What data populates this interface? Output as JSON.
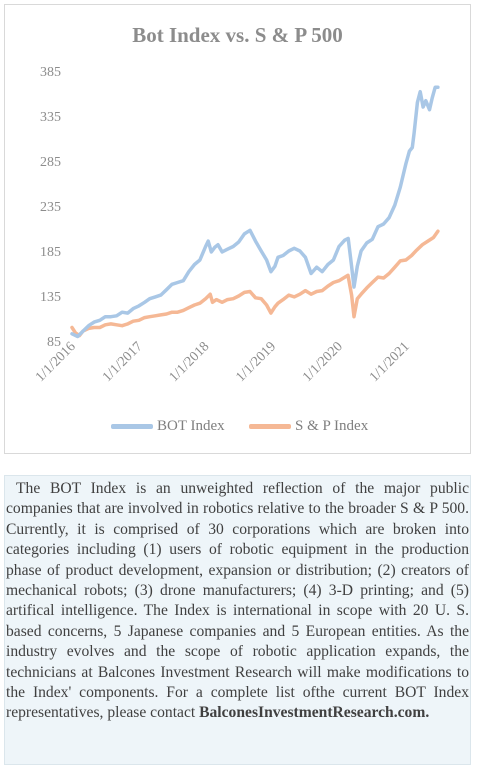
{
  "chart_data": {
    "type": "line",
    "title": "Bot Index vs. S & P 500",
    "xlabel": "",
    "ylabel": "",
    "ylim": [
      85,
      385
    ],
    "yticks": [
      85,
      135,
      185,
      235,
      285,
      335,
      385
    ],
    "xlim": [
      "2016-01-01",
      "2021-07-01"
    ],
    "xticks": [
      "1/1/2016",
      "1/1/2017",
      "1/1/2018",
      "1/1/2019",
      "1/1/2020",
      "1/1/2021"
    ],
    "legend_position": "bottom",
    "grid": false,
    "series": [
      {
        "name": "BOT Index",
        "color": "#a9c7e6",
        "x": [
          "2016-01-01",
          "2016-02-01",
          "2016-03-01",
          "2016-04-01",
          "2016-05-01",
          "2016-06-01",
          "2016-07-01",
          "2016-08-01",
          "2016-09-01",
          "2016-10-01",
          "2016-11-01",
          "2016-12-01",
          "2017-01-01",
          "2017-02-01",
          "2017-03-01",
          "2017-04-01",
          "2017-05-01",
          "2017-06-01",
          "2017-07-01",
          "2017-08-01",
          "2017-09-01",
          "2017-10-01",
          "2017-11-01",
          "2017-12-01",
          "2018-01-01",
          "2018-01-15",
          "2018-02-01",
          "2018-02-20",
          "2018-03-10",
          "2018-04-01",
          "2018-05-01",
          "2018-06-01",
          "2018-07-01",
          "2018-08-01",
          "2018-09-01",
          "2018-10-01",
          "2018-11-01",
          "2018-12-01",
          "2018-12-24",
          "2019-01-15",
          "2019-02-01",
          "2019-03-01",
          "2019-04-01",
          "2019-05-01",
          "2019-06-01",
          "2019-07-01",
          "2019-08-01",
          "2019-09-01",
          "2019-10-01",
          "2019-11-01",
          "2019-12-01",
          "2020-01-01",
          "2020-02-01",
          "2020-02-20",
          "2020-03-10",
          "2020-03-23",
          "2020-04-10",
          "2020-05-01",
          "2020-06-01",
          "2020-07-01",
          "2020-08-01",
          "2020-09-01",
          "2020-10-01",
          "2020-11-01",
          "2020-12-01",
          "2021-01-01",
          "2021-01-20",
          "2021-02-05",
          "2021-02-15",
          "2021-03-05",
          "2021-03-20",
          "2021-04-05",
          "2021-04-20",
          "2021-05-10",
          "2021-05-25",
          "2021-06-10",
          "2021-06-25"
        ],
        "values": [
          93,
          90,
          96,
          102,
          106,
          108,
          112,
          112,
          113,
          117,
          116,
          121,
          124,
          128,
          132,
          134,
          136,
          142,
          148,
          150,
          152,
          162,
          170,
          175,
          190,
          196,
          184,
          189,
          192,
          184,
          187,
          190,
          195,
          204,
          208,
          196,
          185,
          175,
          162,
          168,
          178,
          180,
          185,
          188,
          185,
          178,
          160,
          167,
          162,
          170,
          175,
          190,
          197,
          199,
          168,
          145,
          168,
          185,
          194,
          198,
          212,
          215,
          222,
          236,
          256,
          282,
          296,
          300,
          316,
          350,
          362,
          345,
          352,
          342,
          355,
          367,
          367
        ]
      },
      {
        "name": "S & P Index",
        "color": "#f5b895",
        "x": [
          "2016-01-01",
          "2016-01-20",
          "2016-02-11",
          "2016-03-01",
          "2016-04-01",
          "2016-05-01",
          "2016-06-01",
          "2016-07-01",
          "2016-08-01",
          "2016-09-01",
          "2016-10-01",
          "2016-11-01",
          "2016-12-01",
          "2017-01-01",
          "2017-02-01",
          "2017-03-01",
          "2017-04-01",
          "2017-05-01",
          "2017-06-01",
          "2017-07-01",
          "2017-08-01",
          "2017-09-01",
          "2017-10-01",
          "2017-11-01",
          "2017-12-01",
          "2018-01-01",
          "2018-01-26",
          "2018-02-08",
          "2018-03-01",
          "2018-04-01",
          "2018-05-01",
          "2018-06-01",
          "2018-07-01",
          "2018-08-01",
          "2018-09-01",
          "2018-10-01",
          "2018-11-01",
          "2018-12-01",
          "2018-12-24",
          "2019-01-15",
          "2019-02-01",
          "2019-03-01",
          "2019-04-01",
          "2019-05-01",
          "2019-06-01",
          "2019-07-01",
          "2019-08-01",
          "2019-09-01",
          "2019-10-01",
          "2019-11-01",
          "2019-12-01",
          "2020-01-01",
          "2020-02-19",
          "2020-03-10",
          "2020-03-23",
          "2020-04-10",
          "2020-05-01",
          "2020-06-01",
          "2020-07-01",
          "2020-08-01",
          "2020-09-01",
          "2020-10-01",
          "2020-11-01",
          "2020-12-01",
          "2021-01-01",
          "2021-02-01",
          "2021-03-01",
          "2021-04-01",
          "2021-05-01",
          "2021-06-01",
          "2021-06-25"
        ],
        "values": [
          100,
          94,
          91,
          96,
          99,
          100,
          100,
          103,
          104,
          103,
          102,
          104,
          107,
          108,
          111,
          112,
          113,
          114,
          115,
          117,
          117,
          119,
          122,
          125,
          127,
          132,
          137,
          128,
          131,
          128,
          131,
          132,
          135,
          139,
          140,
          133,
          132,
          125,
          116,
          123,
          127,
          131,
          136,
          134,
          137,
          141,
          137,
          140,
          141,
          146,
          150,
          152,
          158,
          136,
          112,
          132,
          137,
          144,
          150,
          156,
          155,
          160,
          167,
          174,
          175,
          180,
          186,
          192,
          196,
          200,
          207
        ]
      }
    ]
  },
  "description": {
    "paragraph": "The BOT Index is an unweighted reflection of the major public companies that are involved in robotics relative to the broader S & P 500. Currently, it is comprised of 30 corporations which are broken into categories including (1) users of robotic equipment in the production phase of product development, expansion or distribution; (2) creators of mechanical robots; (3) drone manufacturers; (4) 3-D printing; and (5) artifical intelligence. The Index is international in scope with 20 U. S. based concerns, 5 Japanese companies and 5 European entities. As the industry evolves and the scope of robotic application expands, the technicians at Balcones Investment Research will make modifications to the Index' components. For a  complete list ofthe current   BOT   Index   representatives,   please   contact",
    "link_text": "BalconesInvestmentResearch.com."
  }
}
